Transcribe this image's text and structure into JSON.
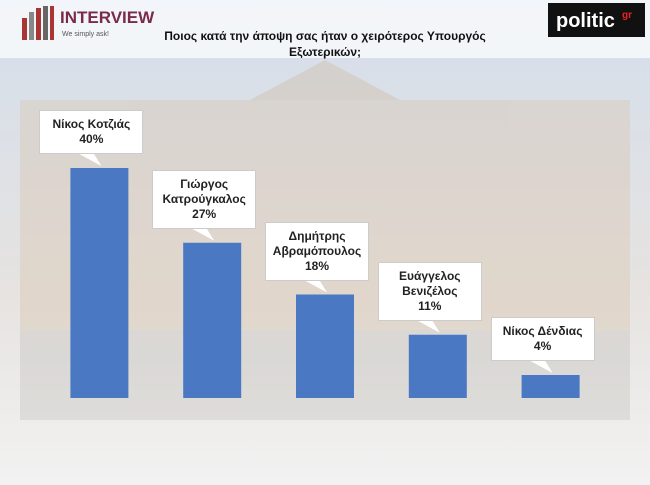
{
  "logos": {
    "interview": "INTERVIEW",
    "interview_tagline": "We simply ask!",
    "politic": "politic",
    "politic_suffix": "gr"
  },
  "chart_data": {
    "type": "bar",
    "title": "Ποιος κατά την άποψη σας ήταν ο χειρότερος Υπουργός Εξωτερικών;",
    "categories": [
      "Νίκος Κοτζιάς",
      "Γιώργος Κατρούγκαλος",
      "Δημήτρης Αβραμόπουλος",
      "Ευάγγελος Βενιζέλος",
      "Νίκος Δένδιας"
    ],
    "values": [
      40,
      27,
      18,
      11,
      4
    ],
    "value_labels": [
      "40%",
      "27%",
      "18%",
      "11%",
      "4%"
    ],
    "color": "#4a78c2",
    "ylim": [
      0,
      40
    ]
  }
}
